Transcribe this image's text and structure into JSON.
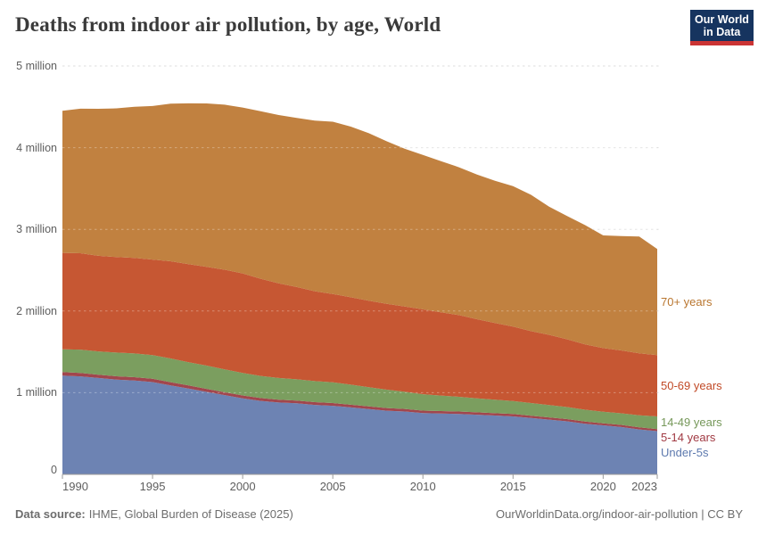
{
  "header": {
    "title": "Deaths from indoor air pollution, by age, World",
    "logo": {
      "line1": "Our World",
      "line2": "in Data",
      "bg_color": "#16345f",
      "bar_color": "#cb3434"
    }
  },
  "chart_data": {
    "type": "area",
    "stacked": true,
    "title": "Deaths from indoor air pollution, by age, World",
    "xlabel": "",
    "ylabel": "",
    "unit": "deaths (millions)",
    "ylim": [
      0,
      5
    ],
    "grid": "dashed-horizontal",
    "legend_position": "right-inline",
    "x": [
      1990,
      1991,
      1992,
      1993,
      1994,
      1995,
      1996,
      1997,
      1998,
      1999,
      2000,
      2001,
      2002,
      2003,
      2004,
      2005,
      2006,
      2007,
      2008,
      2009,
      2010,
      2011,
      2012,
      2013,
      2014,
      2015,
      2016,
      2017,
      2018,
      2019,
      2020,
      2021,
      2022,
      2023
    ],
    "x_ticks": [
      1990,
      1995,
      2000,
      2005,
      2010,
      2015,
      2020,
      2023
    ],
    "y_ticks": [
      {
        "value": 0,
        "label": "0"
      },
      {
        "value": 1,
        "label": "1 million"
      },
      {
        "value": 2,
        "label": "2 million"
      },
      {
        "value": 3,
        "label": "3 million"
      },
      {
        "value": 4,
        "label": "4 million"
      },
      {
        "value": 5,
        "label": "5 million"
      }
    ],
    "series": [
      {
        "name": "Under-5s",
        "color": "#6d83b3",
        "label_color": "#5d79ae",
        "values": [
          1.21,
          1.2,
          1.18,
          1.16,
          1.15,
          1.13,
          1.09,
          1.05,
          1.01,
          0.97,
          0.93,
          0.9,
          0.88,
          0.87,
          0.85,
          0.84,
          0.82,
          0.8,
          0.78,
          0.77,
          0.75,
          0.745,
          0.74,
          0.73,
          0.72,
          0.71,
          0.69,
          0.67,
          0.65,
          0.62,
          0.6,
          0.58,
          0.55,
          0.53
        ]
      },
      {
        "name": "5-14 years",
        "color": "#a1464d",
        "label_color": "#a13a43",
        "values": [
          0.042,
          0.042,
          0.041,
          0.041,
          0.04,
          0.04,
          0.039,
          0.038,
          0.037,
          0.036,
          0.036,
          0.035,
          0.035,
          0.034,
          0.034,
          0.033,
          0.033,
          0.032,
          0.032,
          0.031,
          0.031,
          0.03,
          0.03,
          0.03,
          0.029,
          0.029,
          0.028,
          0.028,
          0.027,
          0.027,
          0.026,
          0.026,
          0.025,
          0.025
        ]
      },
      {
        "name": "14-49 years",
        "color": "#7b9e5f",
        "label_color": "#76985a",
        "values": [
          0.28,
          0.285,
          0.285,
          0.29,
          0.29,
          0.29,
          0.29,
          0.285,
          0.285,
          0.28,
          0.275,
          0.27,
          0.265,
          0.26,
          0.258,
          0.255,
          0.245,
          0.235,
          0.225,
          0.21,
          0.2,
          0.19,
          0.18,
          0.17,
          0.165,
          0.16,
          0.155,
          0.15,
          0.147,
          0.144,
          0.14,
          0.142,
          0.148,
          0.155
        ]
      },
      {
        "name": "50-69 years",
        "color": "#c65733",
        "label_color": "#c14a27",
        "values": [
          1.18,
          1.18,
          1.17,
          1.17,
          1.17,
          1.17,
          1.19,
          1.2,
          1.21,
          1.22,
          1.22,
          1.19,
          1.16,
          1.13,
          1.1,
          1.08,
          1.07,
          1.06,
          1.05,
          1.045,
          1.04,
          1.02,
          1.0,
          0.97,
          0.94,
          0.91,
          0.88,
          0.86,
          0.83,
          0.8,
          0.78,
          0.77,
          0.76,
          0.75
        ]
      },
      {
        "name": "70+ years",
        "color": "#c18140",
        "label_color": "#b9762f",
        "values": [
          1.74,
          1.77,
          1.8,
          1.82,
          1.85,
          1.88,
          1.93,
          1.97,
          2.0,
          2.02,
          2.03,
          2.05,
          2.06,
          2.07,
          2.09,
          2.11,
          2.09,
          2.05,
          1.99,
          1.93,
          1.89,
          1.85,
          1.81,
          1.77,
          1.74,
          1.72,
          1.67,
          1.57,
          1.51,
          1.46,
          1.38,
          1.4,
          1.43,
          1.3
        ]
      }
    ]
  },
  "footer": {
    "source_label": "Data source:",
    "source_text": "IHME, Global Burden of Disease (2025)",
    "citation": "OurWorldinData.org/indoor-air-pollution | CC BY"
  }
}
